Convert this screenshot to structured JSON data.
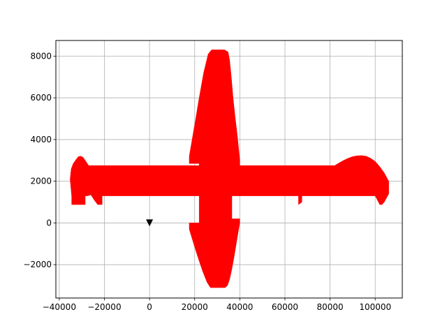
{
  "chart_data": {
    "type": "area",
    "title": "",
    "xlabel": "",
    "ylabel": "",
    "xlim": [
      -41500,
      112000
    ],
    "ylim": [
      -3600,
      8750
    ],
    "grid": true,
    "x_ticks": [
      -40000,
      -20000,
      0,
      20000,
      40000,
      60000,
      80000,
      100000
    ],
    "x_tick_labels": [
      "−40000",
      "−20000",
      "0",
      "20000",
      "40000",
      "60000",
      "80000",
      "100000"
    ],
    "y_ticks": [
      -2000,
      0,
      2000,
      4000,
      6000,
      8000
    ],
    "y_tick_labels": [
      "−2000",
      "0",
      "2000",
      "4000",
      "6000",
      "8000"
    ],
    "series": [
      {
        "shape": "horizontal-band",
        "color": "#ff0000",
        "x": [
          -35200,
          -34700,
          -33800,
          -32500,
          -31500,
          -30500,
          -29500,
          -28500,
          -27000,
          82000,
          84000,
          86000,
          88000,
          90000,
          92000,
          94000,
          96000,
          98000,
          100000,
          102000,
          104000,
          106000,
          106000,
          105000,
          104000,
          103000,
          102000,
          100000,
          95000,
          90000,
          85000,
          80000,
          75000,
          70000,
          67500,
          67500,
          66000,
          66000,
          -21000,
          -21000,
          -23000,
          -24500,
          -26000,
          -27500,
          -28500,
          -28500,
          -34500,
          -34500,
          -35200
        ],
        "y": [
          2100,
          2600,
          2850,
          3050,
          3180,
          3200,
          3150,
          3000,
          2750,
          2750,
          2880,
          3000,
          3100,
          3180,
          3220,
          3230,
          3200,
          3100,
          2950,
          2700,
          2400,
          2000,
          1400,
          1200,
          1000,
          880,
          880,
          1300,
          1300,
          1300,
          1300,
          1300,
          1300,
          1300,
          1300,
          1000,
          880,
          1300,
          1300,
          880,
          880,
          1100,
          1350,
          1300,
          1300,
          880,
          880,
          1300,
          2100
        ]
      },
      {
        "shape": "vertical-band",
        "color": "#ff0000",
        "x": [
          17600,
          17600,
          20000,
          22000,
          24000,
          26000,
          27500,
          33200,
          34800,
          35500,
          36300,
          37000,
          38000,
          39000,
          40000,
          40000,
          22000,
          22000,
          17600
        ],
        "y": [
          2850,
          3200,
          4700,
          6000,
          7200,
          8100,
          8300,
          8300,
          8200,
          7800,
          6900,
          6000,
          5000,
          4100,
          3000,
          2750,
          2750,
          2850,
          2850
        ]
      },
      {
        "shape": "lower-fin",
        "color": "#ff0000",
        "x": [
          17600,
          17600,
          19000,
          21000,
          23500,
          25500,
          27000,
          33500,
          34500,
          35500,
          36500,
          37500,
          38500,
          39500,
          40000,
          40000,
          40000,
          36500,
          36500,
          35500,
          35500,
          30000,
          22000,
          22000,
          17600
        ],
        "y": [
          0,
          -300,
          -800,
          -1500,
          -2300,
          -2850,
          -3100,
          -3100,
          -3000,
          -2700,
          -2200,
          -1600,
          -950,
          -300,
          0,
          200,
          200,
          200,
          1300,
          1300,
          1300,
          1300,
          1300,
          0,
          0
        ]
      }
    ],
    "markers": [
      {
        "x": 0,
        "y": 0,
        "color": "#000000",
        "symbol": "triangle-down"
      }
    ]
  }
}
